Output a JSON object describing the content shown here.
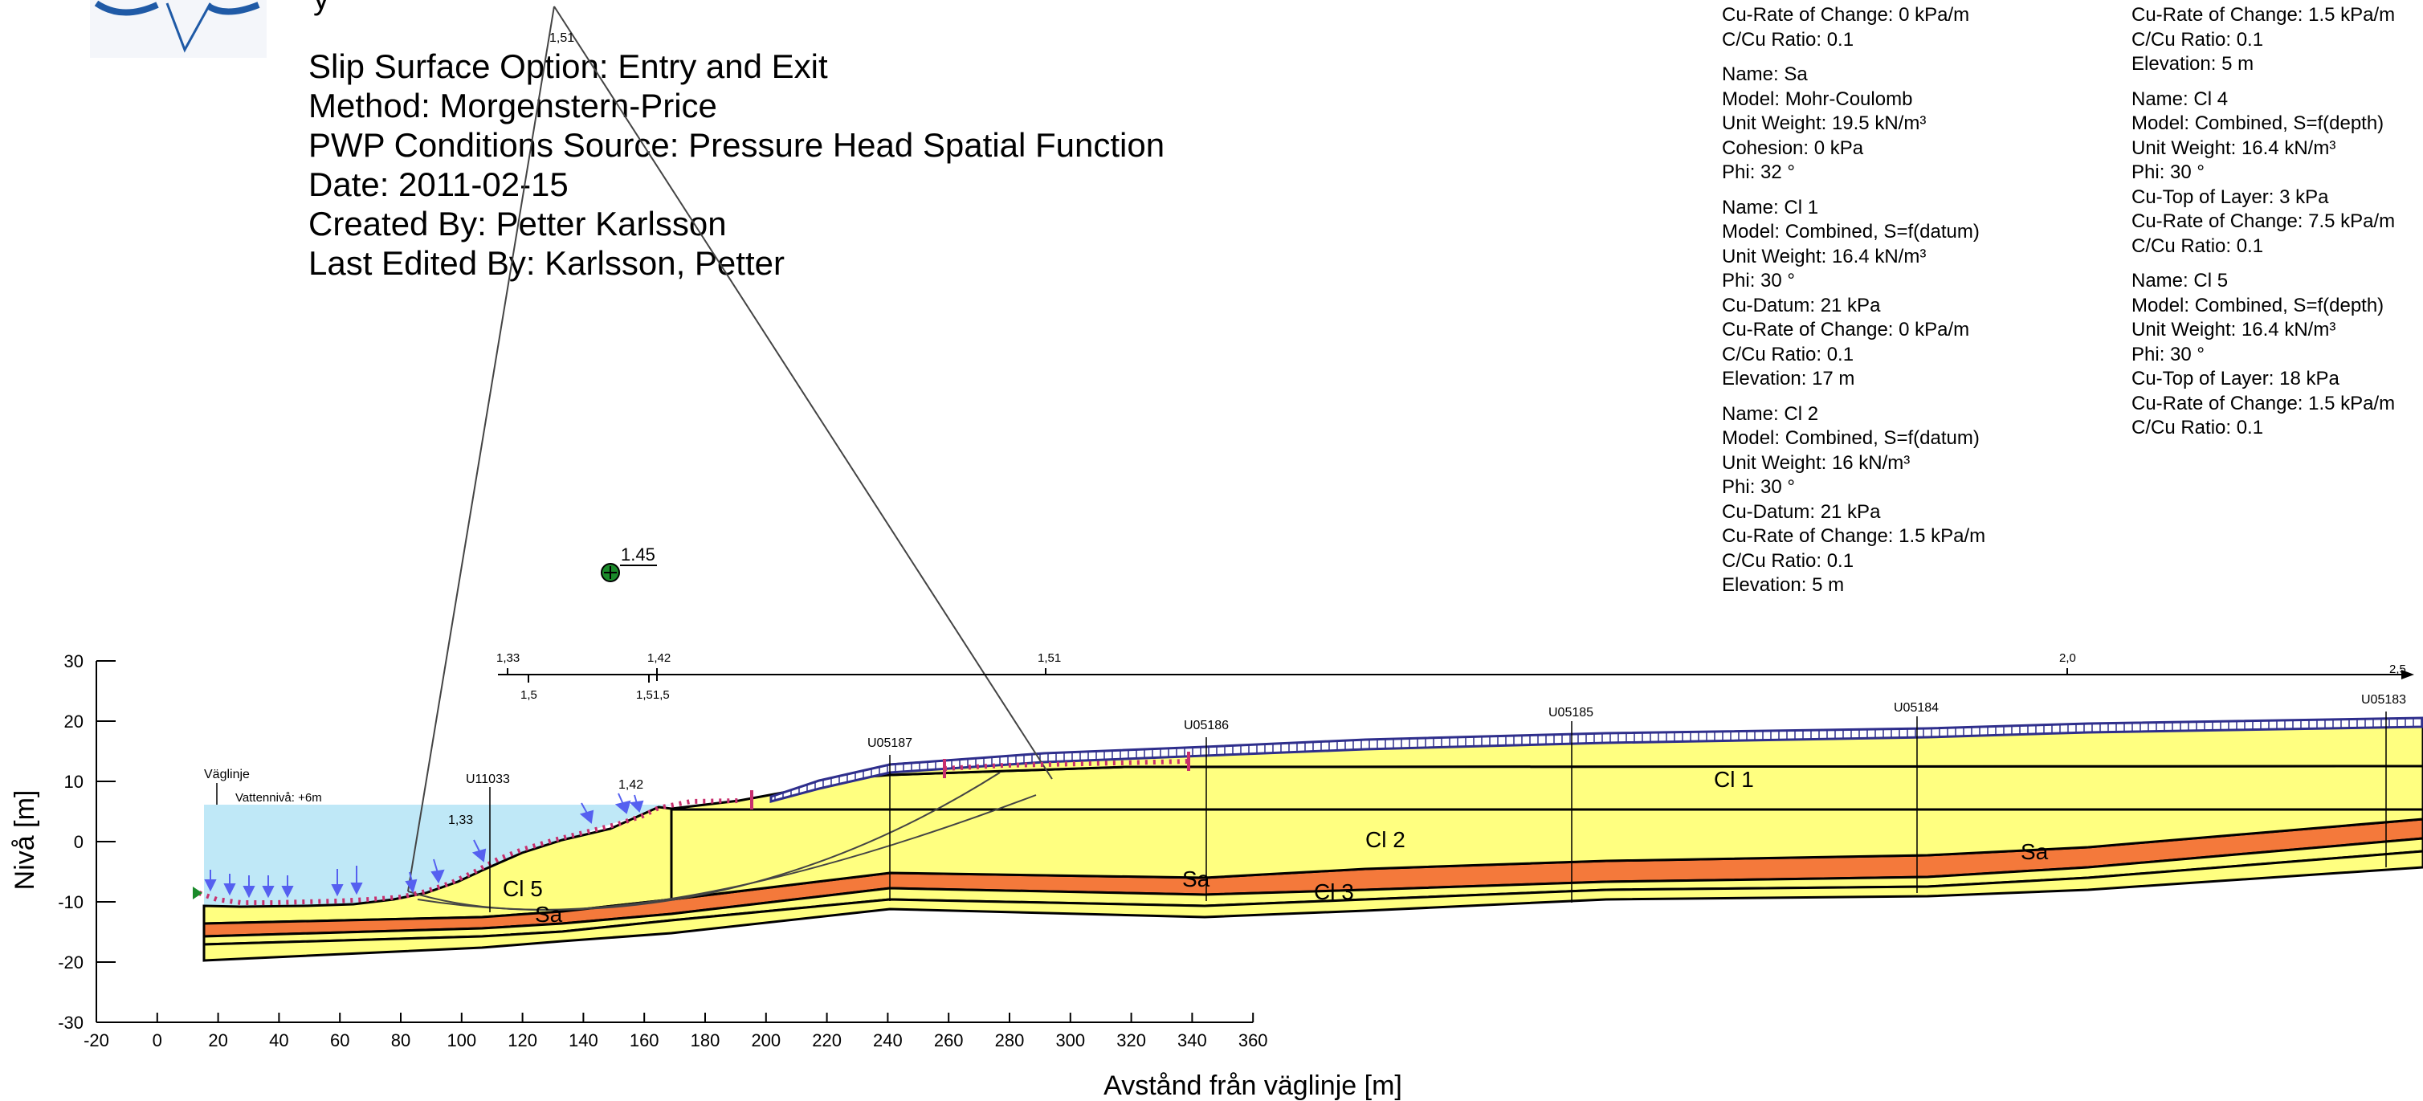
{
  "header": {
    "partial_title": "y",
    "info_lines": [
      "Slip Surface Option: Entry and Exit",
      "Method: Morgenstern-Price",
      "PWP Conditions Source: Pressure Head Spatial Function",
      "Date: 2011-02-15",
      "Created By: Petter Karlsson",
      "Last Edited By: Karlsson, Petter"
    ]
  },
  "materials_left": [
    {
      "lines": [
        "Cu-Rate of Change: 0 kPa/m",
        "C/Cu Ratio: 0.1"
      ]
    },
    {
      "lines": [
        "Name: Sa",
        "Model: Mohr-Coulomb",
        "Unit Weight: 19.5 kN/m³",
        "Cohesion: 0 kPa",
        "Phi: 32 °"
      ]
    },
    {
      "lines": [
        "Name: Cl 1",
        "Model: Combined, S=f(datum)",
        "Unit Weight: 16.4 kN/m³",
        "Phi: 30 °",
        "Cu-Datum: 21 kPa",
        "Cu-Rate of Change: 0 kPa/m",
        "C/Cu Ratio: 0.1",
        "Elevation: 17 m"
      ]
    },
    {
      "lines": [
        "Name: Cl 2",
        "Model: Combined, S=f(datum)",
        "Unit Weight: 16 kN/m³",
        "Phi: 30 °",
        "Cu-Datum: 21 kPa",
        "Cu-Rate of Change: 1.5 kPa/m",
        "C/Cu Ratio: 0.1",
        "Elevation: 5 m"
      ]
    }
  ],
  "materials_right": [
    {
      "lines": [
        "Cu-Rate of Change: 1.5 kPa/m",
        "C/Cu Ratio: 0.1",
        "Elevation: 5 m"
      ]
    },
    {
      "lines": [
        "Name: Cl 4",
        "Model: Combined, S=f(depth)",
        "Unit Weight: 16.4 kN/m³",
        "Phi: 30 °",
        "Cu-Top of Layer: 3 kPa",
        "Cu-Rate of Change: 7.5 kPa/m",
        "C/Cu Ratio: 0.1"
      ]
    },
    {
      "lines": [
        "Name: Cl 5",
        "Model: Combined, S=f(depth)",
        "Unit Weight: 16.4 kN/m³",
        "Phi: 30 °",
        "Cu-Top of Layer: 18 kPa",
        "Cu-Rate of Change: 1.5 kPa/m",
        "C/Cu Ratio: 0.1"
      ]
    }
  ],
  "axes": {
    "xlabel": "Avstånd från väglinje [m]",
    "ylabel": "Nivå [m]",
    "x_ticks": [
      "-20",
      "0",
      "20",
      "40",
      "60",
      "80",
      "100",
      "120",
      "140",
      "160",
      "180",
      "200",
      "220",
      "240",
      "260",
      "280",
      "300",
      "320",
      "340",
      "360"
    ],
    "y_ticks": [
      "30",
      "20",
      "10",
      "0",
      "-10",
      "-20",
      "-30"
    ],
    "x_values": [
      -20,
      0,
      20,
      40,
      60,
      80,
      100,
      120,
      140,
      160,
      180,
      200,
      220,
      240,
      260,
      280,
      300,
      320,
      340,
      360
    ],
    "y_values": [
      30,
      20,
      10,
      0,
      -10,
      -20,
      -30
    ]
  },
  "diagram": {
    "layer_labels": {
      "cl1": "Cl 1",
      "cl2": "Cl 2",
      "cl3": "Cl 3",
      "cl5": "Cl 5",
      "sa_left": "Sa",
      "sa_mid": "Sa",
      "sa_right": "Sa"
    },
    "boreholes": [
      "U11033",
      "U05187",
      "U05186",
      "U05185",
      "U05184",
      "U05183"
    ],
    "road_label": "Väglinje",
    "water_label": "Vattennivå: +6m",
    "critical_factor": "1.45",
    "fan_apex_label": "1,51",
    "scale_top_labels": [
      "1,33",
      "1,42",
      "1,51",
      "2,0",
      "2,5"
    ],
    "scale_bottom_labels": [
      "1,5",
      "1,51,5"
    ],
    "slope_labels": [
      "1,33",
      "1,42"
    ]
  },
  "colors": {
    "clay": "#ffff80",
    "sand": "#f4793b",
    "water": "#bfe8f7",
    "road": "#2e2e8c",
    "slip": "#c8306e",
    "arrows": "#5560f0",
    "critical_point": "#1a8a2a"
  }
}
